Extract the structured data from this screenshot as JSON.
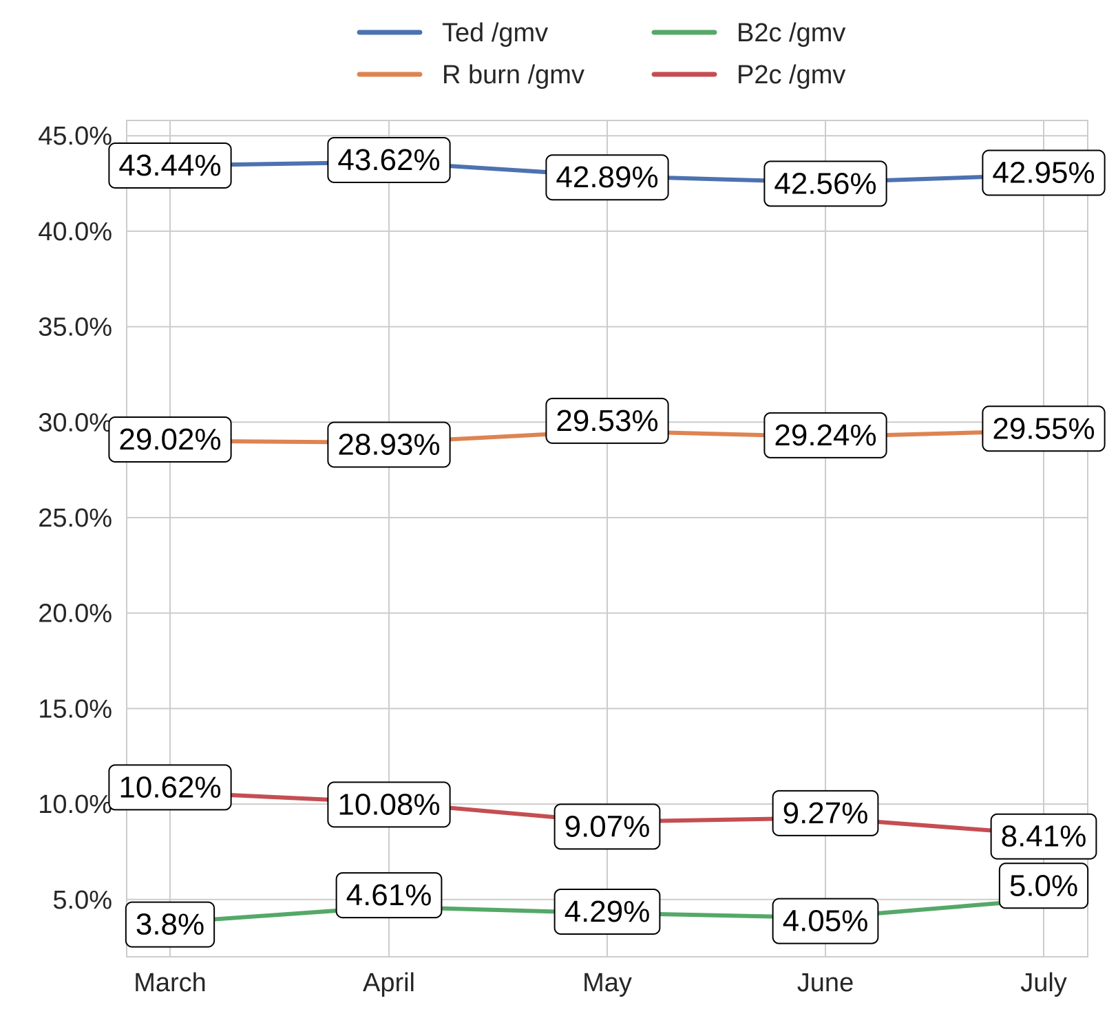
{
  "chart_data": {
    "type": "line",
    "categories": [
      "March",
      "April",
      "May",
      "June",
      "July"
    ],
    "ylim": [
      2.0,
      45.8
    ],
    "yticks": [
      5.0,
      10.0,
      15.0,
      20.0,
      25.0,
      30.0,
      35.0,
      40.0,
      45.0
    ],
    "ytick_labels": [
      "5.0%",
      "10.0%",
      "15.0%",
      "20.0%",
      "25.0%",
      "30.0%",
      "35.0%",
      "40.0%",
      "45.0%"
    ],
    "grid": true,
    "legend_placement": "top-center",
    "series": [
      {
        "name": "Ted /gmv",
        "color": "#4c72b0",
        "values": [
          43.44,
          43.62,
          42.89,
          42.56,
          42.95
        ],
        "labels": [
          "43.44%",
          "43.62%",
          "42.89%",
          "42.56%",
          "42.95%"
        ]
      },
      {
        "name": "R burn /gmv",
        "color": "#dd8452",
        "values": [
          29.02,
          28.93,
          29.53,
          29.24,
          29.55
        ],
        "labels": [
          "29.02%",
          "28.93%",
          "29.53%",
          "29.24%",
          "29.55%"
        ]
      },
      {
        "name": "B2c /gmv",
        "color": "#55a868",
        "values": [
          3.8,
          4.61,
          4.29,
          4.05,
          5.0
        ],
        "labels": [
          "3.8%",
          "4.61%",
          "4.29%",
          "4.05%",
          "5.0%"
        ]
      },
      {
        "name": "P2c /gmv",
        "color": "#c44e52",
        "values": [
          10.62,
          10.08,
          9.07,
          9.27,
          8.41
        ],
        "labels": [
          "10.62%",
          "10.08%",
          "9.07%",
          "9.27%",
          "8.41%"
        ]
      }
    ]
  }
}
